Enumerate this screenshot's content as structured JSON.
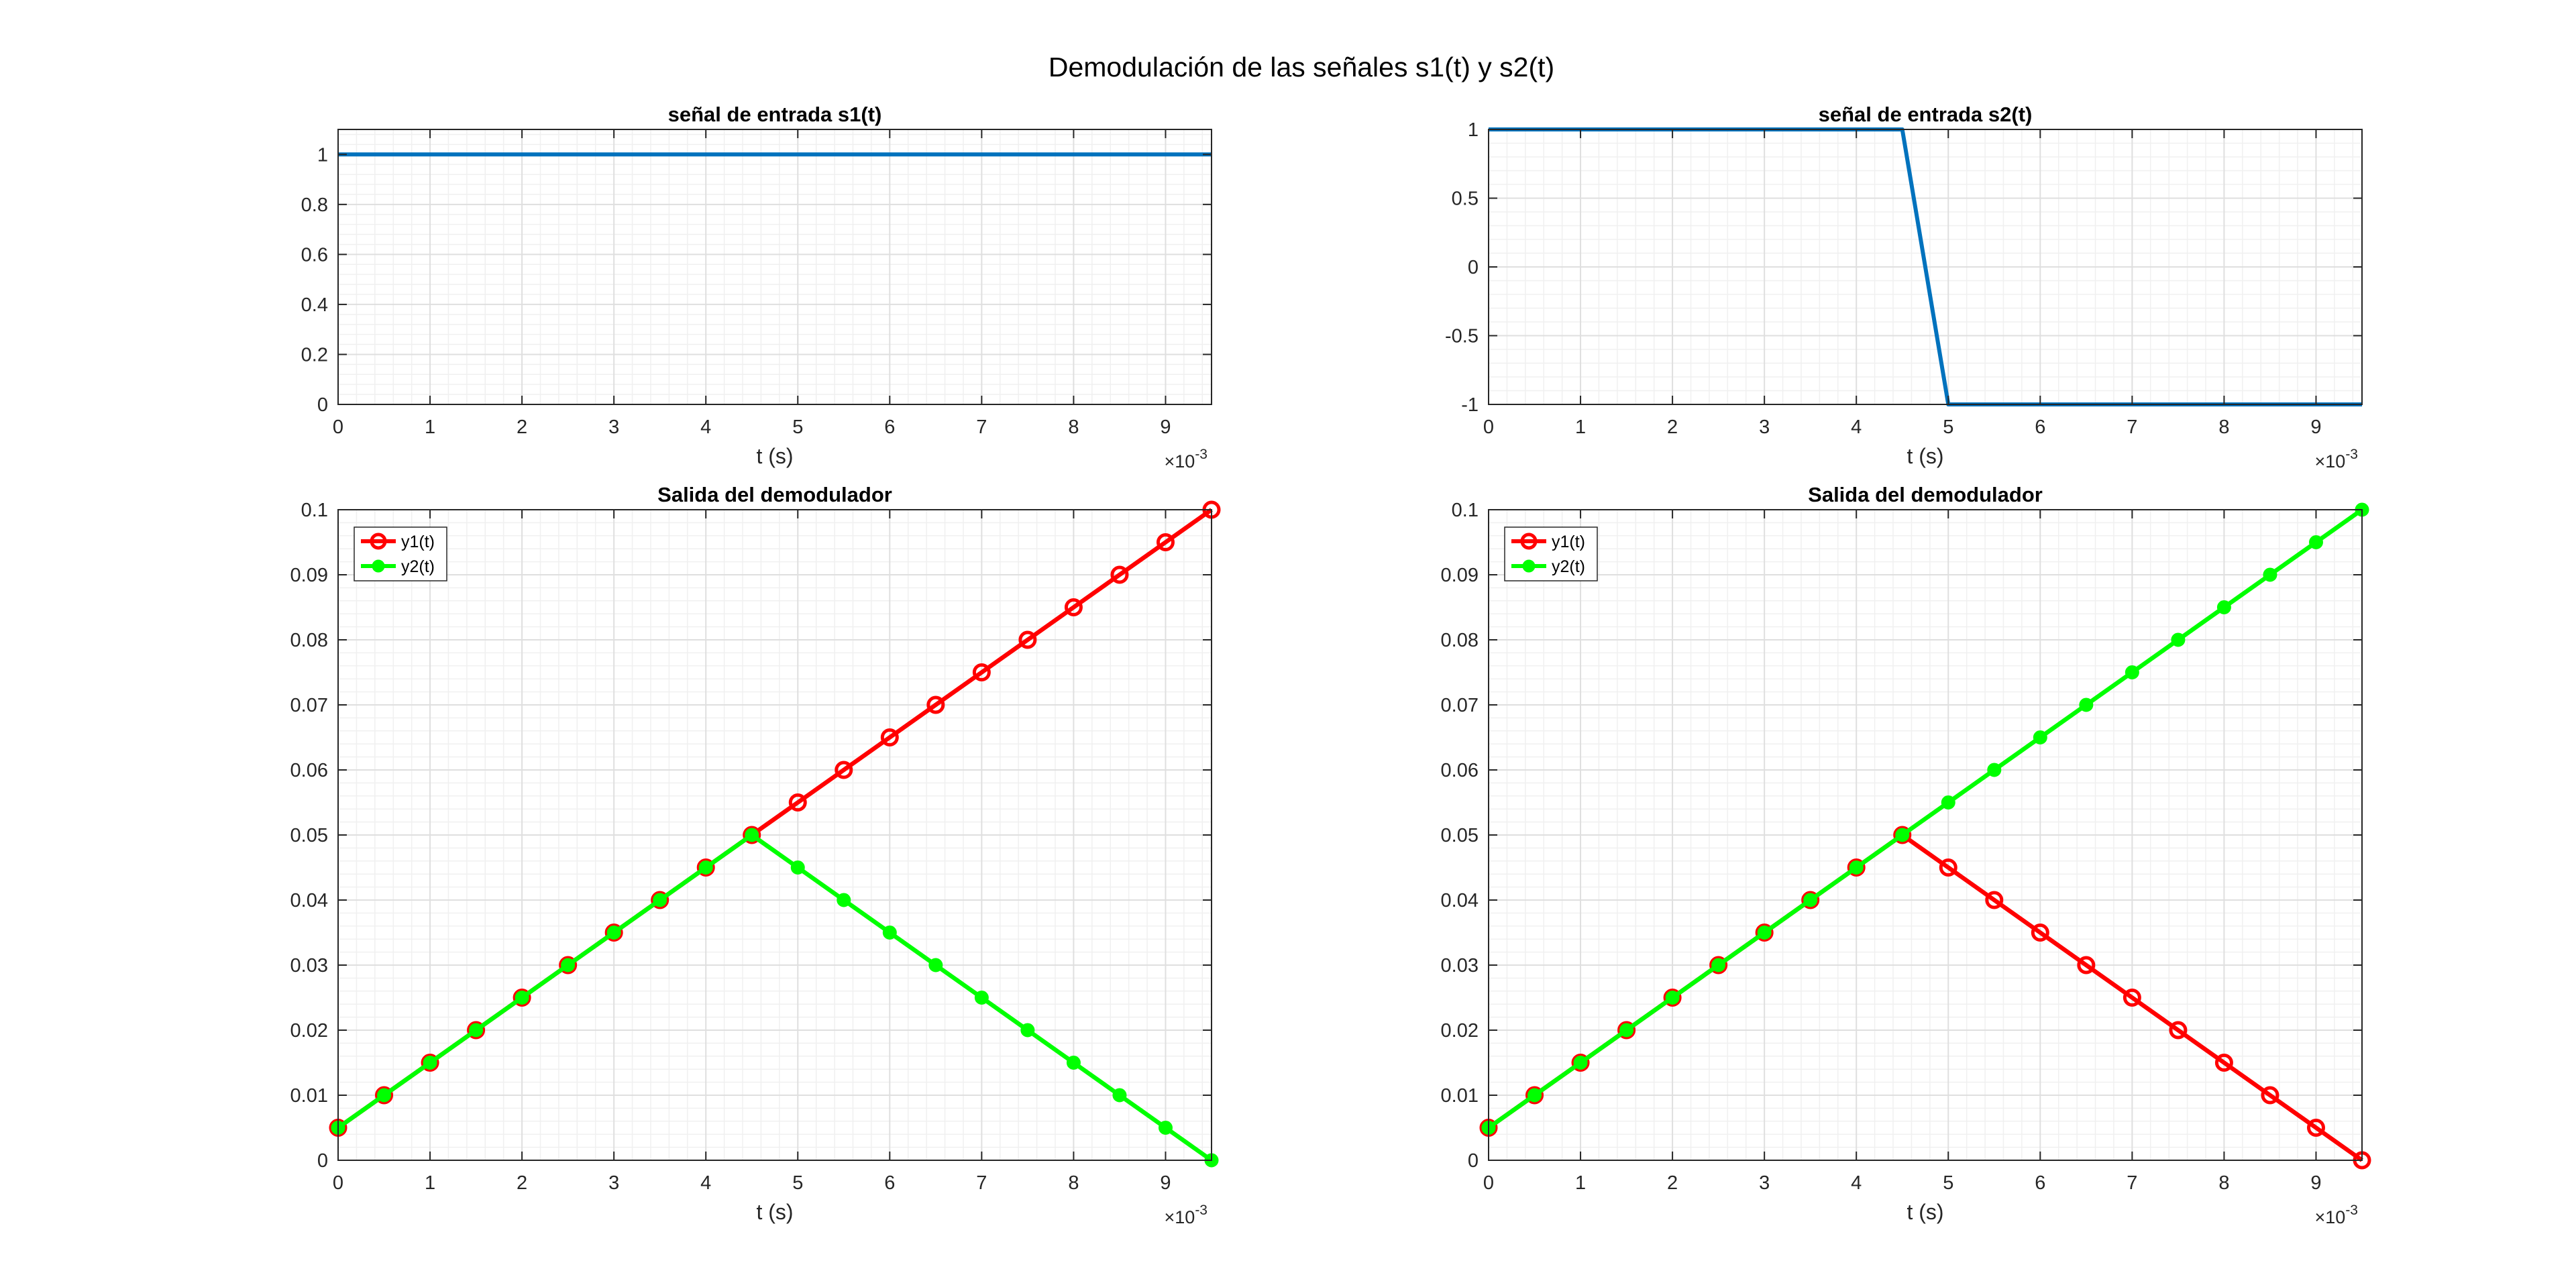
{
  "figure": {
    "title": "Demodulación de las señales s1(t) y s2(t)"
  },
  "colors": {
    "signal_line": "#0072BD",
    "y1_line": "#FF0000",
    "y2_line": "#00FF00",
    "axis": "#262626",
    "grid_major": "#DFDFDF",
    "grid_minor": "#F0F0F0"
  },
  "chart_data": [
    {
      "id": "s1",
      "type": "line",
      "title": "señal de entrada s1(t)",
      "xlabel": "t (s)",
      "ylabel": "",
      "x_exponent_label": "×10",
      "x_exponent": "-3",
      "xlim": [
        0,
        0.0095
      ],
      "ylim": [
        0,
        1.1
      ],
      "xticks": [
        0,
        0.001,
        0.002,
        0.003,
        0.004,
        0.005,
        0.006,
        0.007,
        0.008,
        0.009
      ],
      "xtick_labels": [
        "0",
        "1",
        "2",
        "3",
        "4",
        "5",
        "6",
        "7",
        "8",
        "9"
      ],
      "yticks": [
        0,
        0.2,
        0.4,
        0.6,
        0.8,
        1
      ],
      "ytick_labels": [
        "0",
        "0.2",
        "0.4",
        "0.6",
        "0.8",
        "1"
      ],
      "grid": true,
      "minor_grid": true,
      "legend": null,
      "series": [
        {
          "name": "",
          "color": "#0072BD",
          "marker": "none",
          "x": [
            0,
            0.0095
          ],
          "y": [
            1,
            1
          ]
        }
      ]
    },
    {
      "id": "s2",
      "type": "line",
      "title": "señal de entrada s2(t)",
      "xlabel": "t (s)",
      "ylabel": "",
      "x_exponent_label": "×10",
      "x_exponent": "-3",
      "xlim": [
        0,
        0.0095
      ],
      "ylim": [
        -1,
        1
      ],
      "xticks": [
        0,
        0.001,
        0.002,
        0.003,
        0.004,
        0.005,
        0.006,
        0.007,
        0.008,
        0.009
      ],
      "xtick_labels": [
        "0",
        "1",
        "2",
        "3",
        "4",
        "5",
        "6",
        "7",
        "8",
        "9"
      ],
      "yticks": [
        -1,
        -0.5,
        0,
        0.5,
        1
      ],
      "ytick_labels": [
        "-1",
        "-0.5",
        "0",
        "0.5",
        "1"
      ],
      "grid": true,
      "minor_grid": true,
      "legend": null,
      "series": [
        {
          "name": "",
          "color": "#0072BD",
          "marker": "none",
          "x": [
            0,
            0.0045,
            0.005,
            0.0095
          ],
          "y": [
            1,
            1,
            -1,
            -1
          ]
        }
      ]
    },
    {
      "id": "d1",
      "type": "line",
      "title": "Salida del demodulador",
      "xlabel": "t (s)",
      "ylabel": "",
      "x_exponent_label": "×10",
      "x_exponent": "-3",
      "xlim": [
        0,
        0.0095
      ],
      "ylim": [
        0,
        0.1
      ],
      "xticks": [
        0,
        0.001,
        0.002,
        0.003,
        0.004,
        0.005,
        0.006,
        0.007,
        0.008,
        0.009
      ],
      "xtick_labels": [
        "0",
        "1",
        "2",
        "3",
        "4",
        "5",
        "6",
        "7",
        "8",
        "9"
      ],
      "yticks": [
        0,
        0.01,
        0.02,
        0.03,
        0.04,
        0.05,
        0.06,
        0.07,
        0.08,
        0.09,
        0.1
      ],
      "ytick_labels": [
        "0",
        "0.01",
        "0.02",
        "0.03",
        "0.04",
        "0.05",
        "0.06",
        "0.07",
        "0.08",
        "0.09",
        "0.1"
      ],
      "grid": true,
      "minor_grid": true,
      "legend": "top-left",
      "series": [
        {
          "name": "y1(t)",
          "color": "#FF0000",
          "marker": "circle",
          "x": [
            0,
            0.0005,
            0.001,
            0.0015,
            0.002,
            0.0025,
            0.003,
            0.0035,
            0.004,
            0.0045,
            0.005,
            0.0055,
            0.006,
            0.0065,
            0.007,
            0.0075,
            0.008,
            0.0085,
            0.009,
            0.0095
          ],
          "y": [
            0.005,
            0.01,
            0.015,
            0.02,
            0.025,
            0.03,
            0.035,
            0.04,
            0.045,
            0.05,
            0.055,
            0.06,
            0.065,
            0.07,
            0.075,
            0.08,
            0.085,
            0.09,
            0.095,
            0.1
          ]
        },
        {
          "name": "y2(t)",
          "color": "#00FF00",
          "marker": "dot",
          "x": [
            0,
            0.0005,
            0.001,
            0.0015,
            0.002,
            0.0025,
            0.003,
            0.0035,
            0.004,
            0.0045,
            0.005,
            0.0055,
            0.006,
            0.0065,
            0.007,
            0.0075,
            0.008,
            0.0085,
            0.009,
            0.0095
          ],
          "y": [
            0.005,
            0.01,
            0.015,
            0.02,
            0.025,
            0.03,
            0.035,
            0.04,
            0.045,
            0.05,
            0.045,
            0.04,
            0.035,
            0.03,
            0.025,
            0.02,
            0.015,
            0.01,
            0.005,
            0
          ]
        }
      ]
    },
    {
      "id": "d2",
      "type": "line",
      "title": "Salida del demodulador",
      "xlabel": "t (s)",
      "ylabel": "",
      "x_exponent_label": "×10",
      "x_exponent": "-3",
      "xlim": [
        0,
        0.0095
      ],
      "ylim": [
        0,
        0.1
      ],
      "xticks": [
        0,
        0.001,
        0.002,
        0.003,
        0.004,
        0.005,
        0.006,
        0.007,
        0.008,
        0.009
      ],
      "xtick_labels": [
        "0",
        "1",
        "2",
        "3",
        "4",
        "5",
        "6",
        "7",
        "8",
        "9"
      ],
      "yticks": [
        0,
        0.01,
        0.02,
        0.03,
        0.04,
        0.05,
        0.06,
        0.07,
        0.08,
        0.09,
        0.1
      ],
      "ytick_labels": [
        "0",
        "0.01",
        "0.02",
        "0.03",
        "0.04",
        "0.05",
        "0.06",
        "0.07",
        "0.08",
        "0.09",
        "0.1"
      ],
      "grid": true,
      "minor_grid": true,
      "legend": "top-left",
      "series": [
        {
          "name": "y1(t)",
          "color": "#FF0000",
          "marker": "circle",
          "x": [
            0,
            0.0005,
            0.001,
            0.0015,
            0.002,
            0.0025,
            0.003,
            0.0035,
            0.004,
            0.0045,
            0.005,
            0.0055,
            0.006,
            0.0065,
            0.007,
            0.0075,
            0.008,
            0.0085,
            0.009,
            0.0095
          ],
          "y": [
            0.005,
            0.01,
            0.015,
            0.02,
            0.025,
            0.03,
            0.035,
            0.04,
            0.045,
            0.05,
            0.045,
            0.04,
            0.035,
            0.03,
            0.025,
            0.02,
            0.015,
            0.01,
            0.005,
            0
          ]
        },
        {
          "name": "y2(t)",
          "color": "#00FF00",
          "marker": "dot",
          "x": [
            0,
            0.0005,
            0.001,
            0.0015,
            0.002,
            0.0025,
            0.003,
            0.0035,
            0.004,
            0.0045,
            0.005,
            0.0055,
            0.006,
            0.0065,
            0.007,
            0.0075,
            0.008,
            0.0085,
            0.009,
            0.0095
          ],
          "y": [
            0.005,
            0.01,
            0.015,
            0.02,
            0.025,
            0.03,
            0.035,
            0.04,
            0.045,
            0.05,
            0.055,
            0.06,
            0.065,
            0.07,
            0.075,
            0.08,
            0.085,
            0.09,
            0.095,
            0.1
          ]
        }
      ]
    }
  ]
}
